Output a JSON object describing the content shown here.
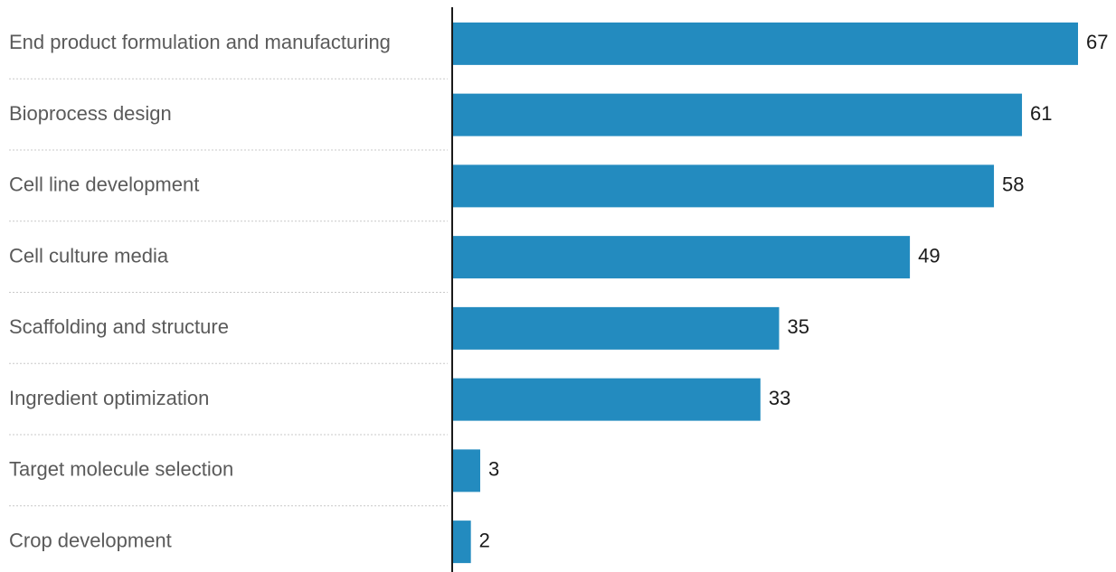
{
  "chart_data": {
    "type": "bar",
    "orientation": "horizontal",
    "title": "",
    "xlabel": "",
    "ylabel": "",
    "categories": [
      "End product formulation and manufacturing",
      "Bioprocess design",
      "Cell line development",
      "Cell culture media",
      "Scaffolding and structure",
      "Ingredient optimization",
      "Target molecule selection",
      "Crop development"
    ],
    "values": [
      67,
      61,
      58,
      49,
      35,
      33,
      3,
      2
    ],
    "xlim": [
      0,
      67
    ],
    "grid": false,
    "legend": "none",
    "data_labels": true
  },
  "colors": {
    "bar": "#238bbf",
    "axis": "#1a1a1a",
    "separator": "#c8c8c8",
    "category_text": "#5a5a5a",
    "value_text": "#1a1a1a"
  }
}
